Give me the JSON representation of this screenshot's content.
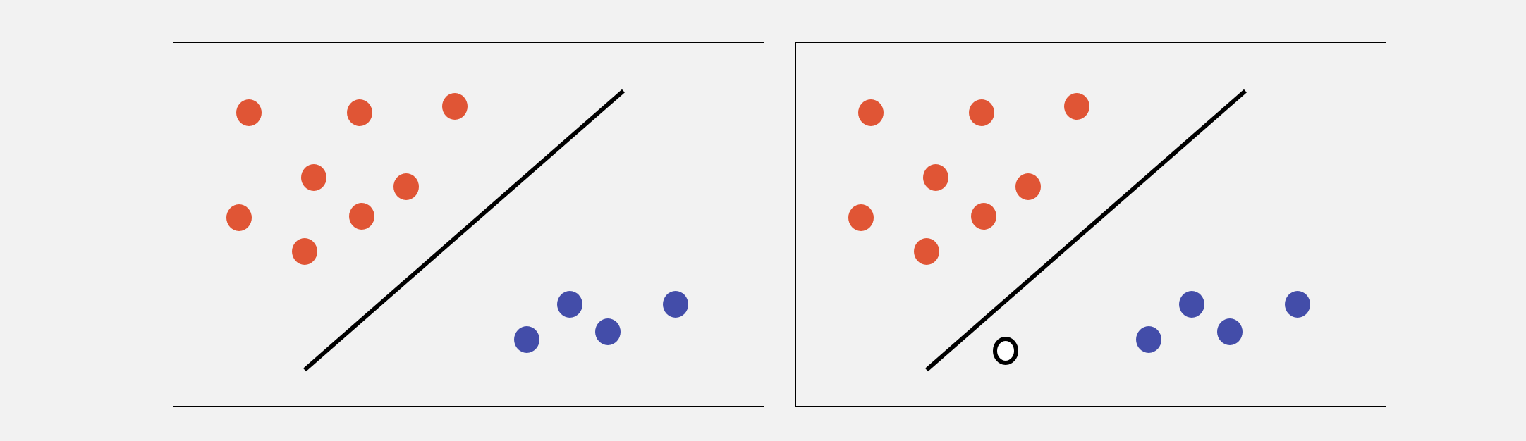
{
  "colors": {
    "background": "#f2f2f2",
    "class_a": "#e05535",
    "class_b": "#434da9",
    "line": "#000000",
    "frame": "#000000",
    "unknown_fill": "#ffffff"
  },
  "panels": [
    {
      "id": "left",
      "class_a_count": 8,
      "class_b_count": 4,
      "has_unknown_point": false
    },
    {
      "id": "right",
      "class_a_count": 8,
      "class_b_count": 4,
      "has_unknown_point": true
    }
  ]
}
